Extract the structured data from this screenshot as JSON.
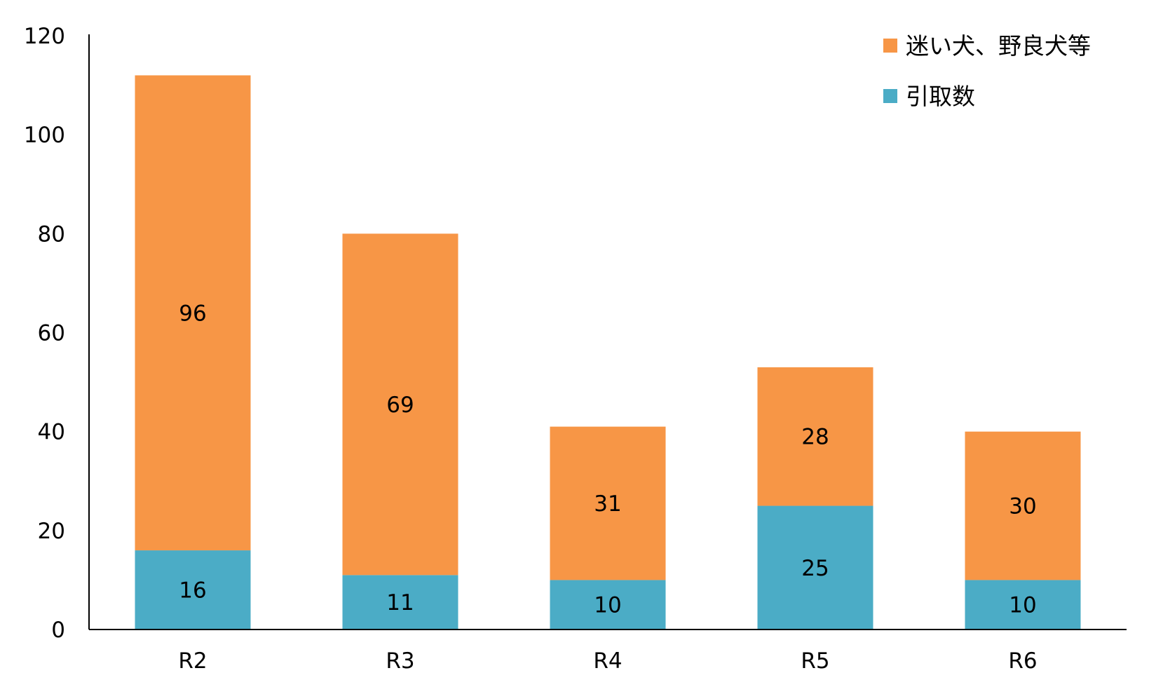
{
  "chart_data": {
    "type": "bar",
    "stacked": true,
    "title": "",
    "xlabel": "",
    "ylabel": "",
    "categories": [
      "R2",
      "R3",
      "R4",
      "R5",
      "R6"
    ],
    "series": [
      {
        "name": "引取数",
        "values": [
          16,
          11,
          10,
          25,
          10
        ],
        "color": "#4BACC6"
      },
      {
        "name": "迷い犬、野良犬等",
        "values": [
          96,
          69,
          31,
          28,
          30
        ],
        "color": "#F79646"
      }
    ],
    "ylim": [
      0,
      120
    ],
    "yticks": [
      0,
      20,
      40,
      60,
      80,
      100,
      120
    ],
    "grid": false,
    "legend": "top-right",
    "data_labels": true
  }
}
